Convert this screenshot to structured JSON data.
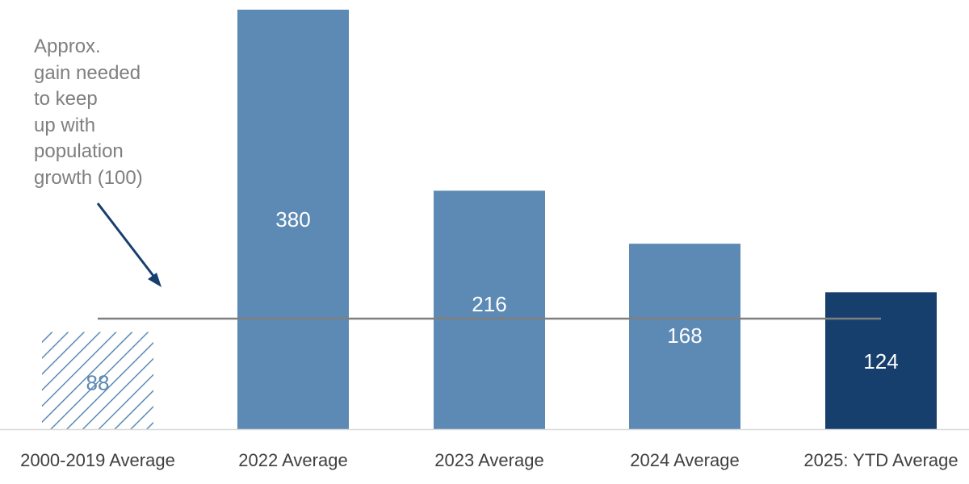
{
  "chart_data": {
    "type": "bar",
    "categories": [
      "2000-2019 Average",
      "2022 Average",
      "2023 Average",
      "2024 Average",
      "2025: YTD Average"
    ],
    "values": [
      88,
      380,
      216,
      168,
      124
    ],
    "data_labels": [
      "88",
      "380",
      "216",
      "168",
      "124"
    ],
    "reference_line": {
      "value": 100
    },
    "annotation": [
      "Approx.",
      "gain needed",
      "to keep",
      "up with",
      "population",
      "growth (100)"
    ],
    "ylim": [
      0,
      380
    ],
    "grid": false,
    "legend": "none",
    "bar_styles": [
      "hatched",
      "solid",
      "solid",
      "solid",
      "dark"
    ]
  },
  "colors": {
    "bar": "#5d8ab4",
    "bar_highlight": "#173f6e",
    "hatch": "#5d8ab4",
    "reference_line": "#7f7f7f",
    "arrow": "#173f6e",
    "axis": "#d9d9d9",
    "tick_label": "#404040",
    "label_on_bar": "#ffffff"
  }
}
